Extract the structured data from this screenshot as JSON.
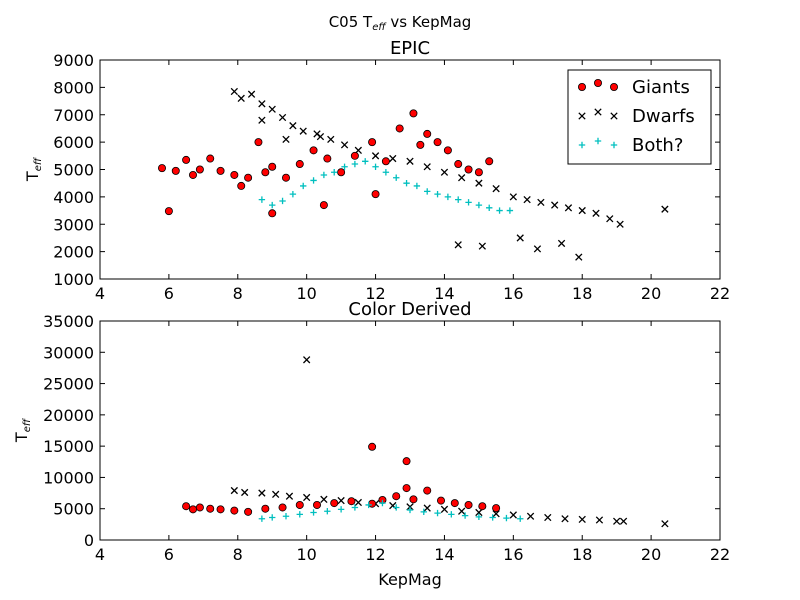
{
  "figure": {
    "suptitle_prefix": "C05 T",
    "suptitle_sub": "eff",
    "suptitle_suffix": " vs KepMag"
  },
  "chart_data": [
    {
      "type": "scatter",
      "title": "EPIC",
      "xlabel": "",
      "ylabel_main": "T",
      "ylabel_sub": "eff",
      "xlim": [
        4,
        22
      ],
      "ylim": [
        1000,
        9000
      ],
      "xticks": [
        "4",
        "6",
        "8",
        "10",
        "12",
        "14",
        "16",
        "18",
        "20",
        "22"
      ],
      "yticks": [
        "1000",
        "2000",
        "3000",
        "4000",
        "5000",
        "6000",
        "7000",
        "8000",
        "9000"
      ],
      "legend": {
        "placement": "top-right",
        "entries": [
          "Giants",
          "Dwarfs",
          "Both?"
        ]
      },
      "series": [
        {
          "name": "Giants",
          "marker": "circle",
          "color": "#ff0000",
          "x": [
            5.8,
            6.0,
            6.2,
            6.5,
            6.7,
            6.9,
            7.2,
            7.5,
            7.9,
            8.1,
            8.3,
            8.6,
            8.8,
            9.0,
            9.4,
            9.8,
            10.2,
            10.6,
            11.0,
            11.4,
            11.9,
            12.3,
            12.7,
            13.1,
            13.3,
            13.5,
            13.8,
            14.1,
            14.4,
            14.7,
            15.0,
            15.3,
            12.0,
            10.5,
            9.0
          ],
          "y": [
            5050,
            3480,
            4950,
            5350,
            4800,
            5000,
            5400,
            4950,
            4800,
            4400,
            4700,
            6000,
            4900,
            5100,
            4700,
            5200,
            5700,
            5400,
            4900,
            5500,
            6000,
            5300,
            6500,
            7050,
            5900,
            6300,
            6000,
            5700,
            5200,
            5000,
            4900,
            5300,
            4100,
            3700,
            3400
          ]
        },
        {
          "name": "Dwarfs",
          "marker": "x",
          "color": "#000000",
          "x": [
            7.9,
            8.1,
            8.4,
            8.7,
            9.0,
            9.3,
            9.6,
            9.9,
            10.3,
            10.7,
            11.1,
            11.5,
            12.0,
            12.5,
            13.0,
            13.5,
            14.0,
            14.5,
            15.0,
            15.5,
            16.0,
            16.4,
            16.8,
            17.2,
            17.6,
            18.0,
            18.4,
            18.8,
            19.1,
            20.4,
            14.4,
            15.1,
            16.2,
            16.7,
            17.4,
            17.9,
            8.7,
            9.4,
            10.4
          ],
          "y": [
            7850,
            7600,
            7750,
            7400,
            7200,
            6900,
            6600,
            6400,
            6300,
            6100,
            5900,
            5700,
            5500,
            5400,
            5300,
            5100,
            4900,
            4700,
            4500,
            4300,
            4000,
            3900,
            3800,
            3700,
            3600,
            3500,
            3400,
            3200,
            3000,
            3550,
            2250,
            2200,
            2500,
            2100,
            2300,
            1800,
            6800,
            6100,
            6200
          ]
        },
        {
          "name": "Both?",
          "marker": "plus",
          "color": "#00bfbf",
          "x": [
            8.7,
            9.0,
            9.3,
            9.6,
            9.9,
            10.2,
            10.5,
            10.8,
            11.1,
            11.4,
            11.7,
            12.0,
            12.3,
            12.6,
            12.9,
            13.2,
            13.5,
            13.8,
            14.1,
            14.4,
            14.7,
            15.0,
            15.3,
            15.6,
            15.9
          ],
          "y": [
            3900,
            3700,
            3850,
            4100,
            4400,
            4600,
            4800,
            4900,
            5100,
            5200,
            5300,
            5100,
            4900,
            4700,
            4500,
            4400,
            4200,
            4100,
            4000,
            3900,
            3800,
            3700,
            3600,
            3500,
            3500
          ]
        }
      ]
    },
    {
      "type": "scatter",
      "title": "Color Derived",
      "xlabel": "KepMag",
      "ylabel_main": "T",
      "ylabel_sub": "eff",
      "xlim": [
        4,
        22
      ],
      "ylim": [
        0,
        35000
      ],
      "xticks": [
        "4",
        "6",
        "8",
        "10",
        "12",
        "14",
        "16",
        "18",
        "20",
        "22"
      ],
      "yticks": [
        "0",
        "5000",
        "10000",
        "15000",
        "20000",
        "25000",
        "30000",
        "35000"
      ],
      "series": [
        {
          "name": "Giants",
          "marker": "circle",
          "color": "#ff0000",
          "x": [
            6.5,
            6.7,
            6.9,
            7.2,
            7.5,
            7.9,
            8.3,
            8.8,
            9.3,
            9.8,
            10.3,
            10.8,
            11.3,
            11.9,
            12.2,
            12.6,
            12.9,
            13.1,
            13.5,
            13.9,
            14.3,
            14.7,
            15.1,
            15.5,
            11.9,
            12.9
          ],
          "y": [
            5400,
            4900,
            5200,
            5000,
            4900,
            4700,
            4500,
            5000,
            5200,
            5600,
            5600,
            5900,
            6200,
            5800,
            6400,
            7000,
            8300,
            6500,
            7900,
            6300,
            5900,
            5600,
            5400,
            5100,
            14900,
            12600
          ]
        },
        {
          "name": "Dwarfs",
          "marker": "x",
          "color": "#000000",
          "x": [
            7.9,
            8.2,
            8.7,
            9.1,
            9.5,
            10.0,
            10.5,
            11.0,
            11.5,
            12.0,
            12.5,
            13.0,
            13.5,
            14.0,
            14.5,
            15.0,
            15.5,
            16.0,
            16.5,
            17.0,
            17.5,
            18.0,
            18.5,
            19.0,
            19.2,
            20.4,
            10.0
          ],
          "y": [
            7900,
            7600,
            7500,
            7300,
            7000,
            6800,
            6500,
            6300,
            6000,
            5800,
            5500,
            5300,
            5100,
            4900,
            4600,
            4400,
            4200,
            4000,
            3800,
            3600,
            3400,
            3300,
            3200,
            3000,
            3000,
            2600,
            28800
          ]
        },
        {
          "name": "Both?",
          "marker": "plus",
          "color": "#00bfbf",
          "x": [
            8.7,
            9.0,
            9.4,
            9.8,
            10.2,
            10.6,
            11.0,
            11.4,
            11.8,
            12.2,
            12.6,
            13.0,
            13.4,
            13.8,
            14.2,
            14.6,
            15.0,
            15.4,
            15.8,
            16.2
          ],
          "y": [
            3400,
            3600,
            3800,
            4100,
            4400,
            4600,
            4900,
            5200,
            5600,
            5900,
            5200,
            4800,
            4500,
            4300,
            4100,
            3900,
            3700,
            3600,
            3500,
            3400
          ]
        }
      ]
    }
  ]
}
